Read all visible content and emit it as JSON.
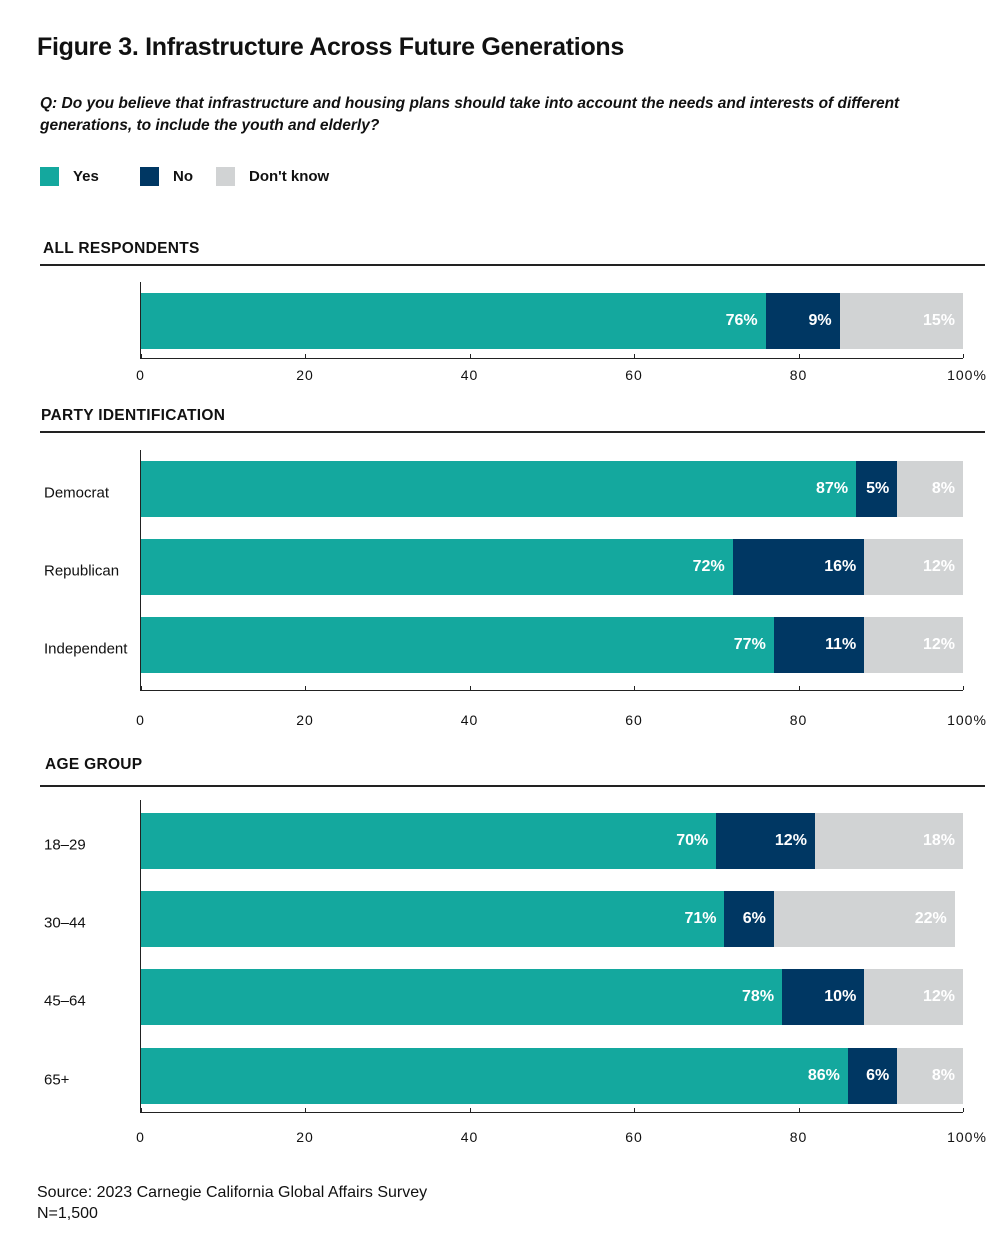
{
  "title": "Figure 3. Infrastructure Across Future Generations",
  "question": "Q: Do you believe that infrastructure and housing plans should take into account the needs and interests of different generations, to include the youth and elderly?",
  "legend": [
    {
      "label": "Yes",
      "color": "#14a89e"
    },
    {
      "label": "No",
      "color": "#003763"
    },
    {
      "label": "Don't know",
      "color": "#d1d3d4"
    }
  ],
  "source": "Source: 2023 Carnegie California Global Affairs Survey",
  "n": "N=1,500",
  "chart_data": [
    {
      "type": "bar",
      "orientation": "horizontal",
      "stacked": true,
      "title": "ALL RESPONDENTS",
      "categories": [
        ""
      ],
      "series": [
        {
          "name": "Yes",
          "values": [
            76
          ]
        },
        {
          "name": "No",
          "values": [
            9
          ]
        },
        {
          "name": "Don't know",
          "values": [
            15
          ]
        }
      ],
      "xlim": [
        0,
        100
      ],
      "tick_labels": [
        "0",
        "20",
        "40",
        "60",
        "80",
        "100%"
      ]
    },
    {
      "type": "bar",
      "orientation": "horizontal",
      "stacked": true,
      "title": "PARTY IDENTIFICATION",
      "categories": [
        "Democrat",
        "Republican",
        "Independent"
      ],
      "series": [
        {
          "name": "Yes",
          "values": [
            87,
            72,
            77
          ]
        },
        {
          "name": "No",
          "values": [
            5,
            16,
            11
          ]
        },
        {
          "name": "Don't know",
          "values": [
            8,
            12,
            12
          ]
        }
      ],
      "xlim": [
        0,
        100
      ],
      "tick_labels": [
        "0",
        "20",
        "40",
        "60",
        "80",
        "100%"
      ]
    },
    {
      "type": "bar",
      "orientation": "horizontal",
      "stacked": true,
      "title": "AGE GROUP",
      "categories": [
        "18–29",
        "30–44",
        "45–64",
        "65+"
      ],
      "series": [
        {
          "name": "Yes",
          "values": [
            70,
            71,
            78,
            86
          ]
        },
        {
          "name": "No",
          "values": [
            12,
            6,
            10,
            6
          ]
        },
        {
          "name": "Don't know",
          "values": [
            18,
            22,
            12,
            8
          ]
        }
      ],
      "xlim": [
        0,
        100
      ],
      "tick_labels": [
        "0",
        "20",
        "40",
        "60",
        "80",
        "100%"
      ]
    }
  ]
}
